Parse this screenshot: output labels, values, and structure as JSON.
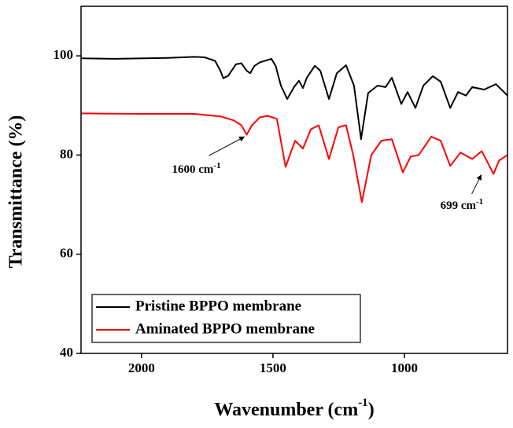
{
  "chart_data": {
    "type": "line",
    "xlabel": [
      "Wavenumber (cm",
      "-1",
      ")"
    ],
    "ylabel": "Transmittance (%)",
    "xlim": [
      2230,
      608
    ],
    "ylim": [
      40,
      110
    ],
    "xticks": [
      2000,
      1500,
      1000
    ],
    "yticks": [
      40,
      60,
      80,
      100
    ],
    "legend": "lower left",
    "series": [
      {
        "name": "Pristine BPPO membrane",
        "color": "#000000",
        "x": [
          2230,
          2100,
          1900,
          1800,
          1760,
          1720,
          1700,
          1689,
          1670,
          1641,
          1620,
          1600,
          1587,
          1570,
          1550,
          1506,
          1490,
          1470,
          1446,
          1420,
          1401,
          1386,
          1371,
          1341,
          1320,
          1287,
          1257,
          1222,
          1192,
          1165,
          1138,
          1102,
          1072,
          1048,
          1012,
          988,
          958,
          928,
          892,
          862,
          826,
          796,
          766,
          742,
          697,
          652,
          608
        ],
        "values": [
          99.5,
          99.4,
          99.6,
          99.8,
          99.7,
          99,
          97,
          95.5,
          96,
          98.3,
          98.5,
          97,
          96.5,
          98,
          98.7,
          99.4,
          98,
          94,
          91.3,
          93.7,
          95,
          93.5,
          95.6,
          98,
          97,
          91.3,
          96.5,
          98.1,
          94,
          83.2,
          92.5,
          94,
          93.7,
          95.6,
          90.3,
          92.7,
          89.5,
          94,
          95.9,
          94.8,
          89.5,
          92.7,
          92,
          93.7,
          93.2,
          94.3,
          92
        ]
      },
      {
        "name": "Aminated BPPO membrane",
        "color": "#ff0000",
        "x": [
          2230,
          2000,
          1800,
          1700,
          1650,
          1620,
          1600,
          1580,
          1550,
          1520,
          1485,
          1452,
          1416,
          1386,
          1356,
          1326,
          1287,
          1251,
          1222,
          1195,
          1162,
          1126,
          1087,
          1048,
          1006,
          976,
          946,
          898,
          862,
          826,
          787,
          742,
          706,
          661,
          640,
          608
        ],
        "values": [
          88.4,
          88.3,
          88.3,
          87.8,
          87,
          86,
          84.1,
          86,
          87.6,
          87.9,
          87.3,
          77.6,
          82.9,
          81.3,
          85.2,
          86,
          79.2,
          85.6,
          86,
          80,
          70.5,
          80,
          82.9,
          83.2,
          76.5,
          79.7,
          80,
          83.7,
          82.9,
          77.8,
          80.5,
          79.2,
          80.8,
          76.2,
          78.9,
          80
        ]
      }
    ],
    "annotations": [
      {
        "text": "1600 cm",
        "sup": "-1",
        "x": 1600,
        "y": 84
      },
      {
        "text": "699 cm",
        "sup": "-1",
        "x": 699,
        "y": 76.3
      }
    ]
  }
}
